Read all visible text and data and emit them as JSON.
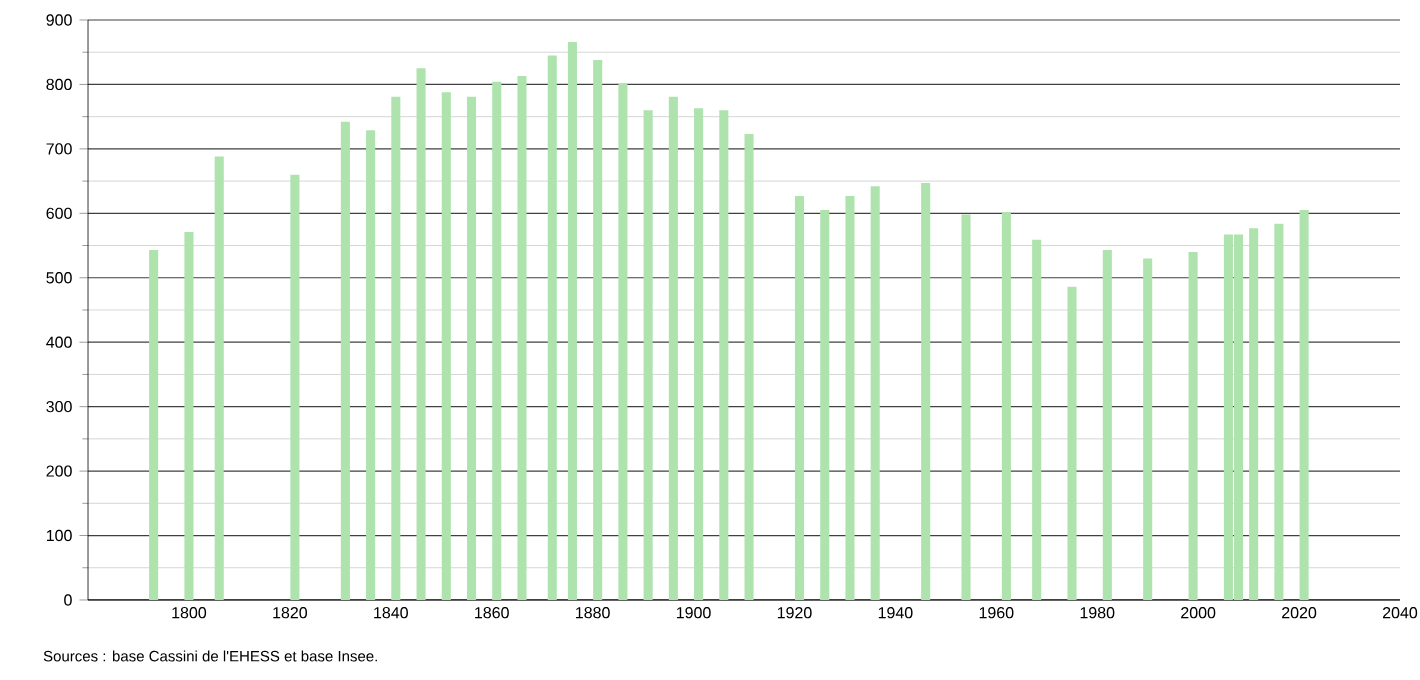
{
  "chart_data": {
    "type": "bar",
    "x": [
      1793,
      1800,
      1806,
      1821,
      1831,
      1836,
      1841,
      1846,
      1851,
      1856,
      1861,
      1866,
      1872,
      1876,
      1881,
      1886,
      1891,
      1896,
      1901,
      1906,
      1911,
      1921,
      1926,
      1931,
      1936,
      1946,
      1954,
      1962,
      1968,
      1975,
      1982,
      1990,
      1999,
      2006,
      2008,
      2011,
      2016,
      2021
    ],
    "values": [
      543,
      571,
      688,
      660,
      742,
      729,
      781,
      825,
      788,
      781,
      804,
      813,
      845,
      866,
      838,
      801,
      760,
      781,
      763,
      760,
      723,
      627,
      605,
      627,
      642,
      647,
      598,
      602,
      559,
      486,
      543,
      530,
      540,
      567,
      567,
      577,
      584,
      605
    ],
    "color": "#aee3ae",
    "xlim": [
      1780,
      2040
    ],
    "xticks": [
      1800,
      1820,
      1840,
      1860,
      1880,
      1900,
      1920,
      1940,
      1960,
      1980,
      2000,
      2020,
      2040
    ],
    "ylim": [
      0,
      900
    ],
    "yticks": [
      0,
      100,
      200,
      300,
      400,
      500,
      600,
      700,
      800,
      900
    ],
    "grid": "y",
    "annotations": [
      "Sources : base Cassini de l'EHESS et base Insee."
    ]
  }
}
